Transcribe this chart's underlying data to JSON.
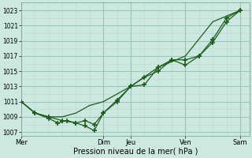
{
  "xlabel": "Pression niveau de la mer( hPa )",
  "bg_color": "#cce8e0",
  "grid_major_color": "#99c4b8",
  "grid_minor_color": "#b8d8d0",
  "line_color": "#1e5c1e",
  "ylim": [
    1006.5,
    1024.0
  ],
  "yticks": [
    1007,
    1009,
    1011,
    1013,
    1015,
    1017,
    1019,
    1021,
    1023
  ],
  "day_labels": [
    "Mer",
    "Dim",
    "Jeu",
    "Ven",
    "Sam"
  ],
  "day_positions": [
    0,
    4.5,
    6.0,
    9.0,
    12.0
  ],
  "xmin": 0,
  "xmax": 12.5,
  "series1_x": [
    0,
    0.75,
    1.5,
    2.25,
    3.0,
    3.75,
    4.5,
    6.0,
    7.5,
    9.0,
    10.5,
    12.0
  ],
  "series1_y": [
    1011.0,
    1009.5,
    1009.0,
    1009.0,
    1009.5,
    1010.5,
    1011.0,
    1013.0,
    1015.5,
    1017.0,
    1021.5,
    1023.0
  ],
  "series2_x": [
    0,
    0.75,
    1.5,
    2.25,
    3.0,
    3.5,
    4.0,
    4.5,
    5.25,
    6.0,
    6.75,
    7.5,
    8.25,
    9.0,
    9.75,
    10.5,
    11.25,
    12.0
  ],
  "series2_y": [
    1011.0,
    1009.5,
    1009.0,
    1008.5,
    1008.2,
    1008.5,
    1008.0,
    1009.5,
    1011.0,
    1013.0,
    1013.2,
    1015.5,
    1016.5,
    1016.5,
    1017.0,
    1018.8,
    1021.5,
    1023.0
  ],
  "series3_x": [
    0,
    0.75,
    1.5,
    2.0,
    2.5,
    3.0,
    3.5,
    4.0,
    4.5,
    5.25,
    6.0,
    6.75,
    7.5,
    8.25,
    9.0,
    9.75,
    10.5,
    11.25,
    12.0
  ],
  "series3_y": [
    1011.0,
    1009.5,
    1008.8,
    1008.2,
    1008.5,
    1008.2,
    1007.8,
    1007.2,
    1009.5,
    1011.2,
    1013.0,
    1014.2,
    1015.0,
    1016.5,
    1015.8,
    1017.0,
    1019.2,
    1022.0,
    1023.0
  ]
}
